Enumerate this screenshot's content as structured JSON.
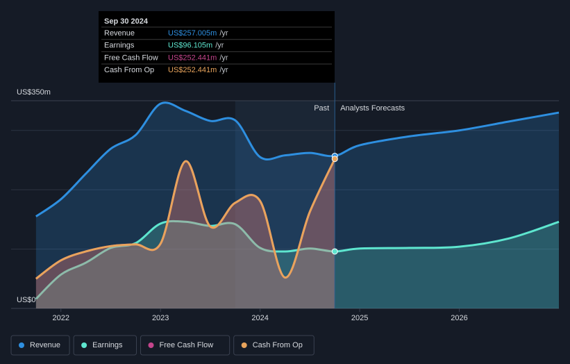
{
  "chart_data": {
    "type": "line",
    "x": [
      2021.75,
      2022.0,
      2022.25,
      2022.5,
      2022.75,
      2023.0,
      2023.25,
      2023.5,
      2023.75,
      2024.0,
      2024.25,
      2024.5,
      2024.75,
      2025.0,
      2025.5,
      2026.0,
      2026.5,
      2027.0
    ],
    "series": [
      {
        "name": "Revenue",
        "color": "#2e8fe0",
        "values": [
          155,
          184,
          227,
          269,
          292,
          345,
          333,
          316,
          317,
          255,
          258,
          262,
          257,
          275,
          290,
          300,
          315,
          330
        ]
      },
      {
        "name": "Earnings",
        "color": "#5ee6cf",
        "values": [
          16,
          57,
          77,
          102,
          110,
          143,
          146,
          139,
          142,
          102,
          96,
          101,
          96,
          101,
          102,
          104,
          118,
          146
        ]
      },
      {
        "name": "Free Cash Flow",
        "color": "#c4458c",
        "values": [
          50,
          81,
          96,
          105,
          108,
          109,
          248,
          138,
          178,
          181,
          52,
          163,
          252,
          null,
          null,
          null,
          null,
          null
        ]
      },
      {
        "name": "Cash From Op",
        "color": "#e8a45c",
        "values": [
          50,
          81,
          96,
          105,
          108,
          109,
          248,
          138,
          178,
          181,
          52,
          163,
          252,
          null,
          null,
          null,
          null,
          null
        ]
      }
    ],
    "xlim": [
      2021.5,
      2027.0
    ],
    "xticks": [
      2022,
      2023,
      2024,
      2025,
      2026
    ],
    "ylim": [
      0,
      350
    ],
    "yticks": [
      {
        "value": 0,
        "label": "US$0"
      },
      {
        "value": 350,
        "label": "US$350m"
      }
    ],
    "ygrid": [
      100,
      200,
      300,
      350
    ],
    "annotations": {
      "past": "Past",
      "forecast": "Analysts Forecasts"
    },
    "tooltip": {
      "date": "Sep 30 2024",
      "rows": [
        {
          "label": "Revenue",
          "value": "US$257.005m",
          "unit": "/yr"
        },
        {
          "label": "Earnings",
          "value": "US$96.105m",
          "unit": "/yr"
        },
        {
          "label": "Free Cash Flow",
          "value": "US$252.441m",
          "unit": "/yr"
        },
        {
          "label": "Cash From Op",
          "value": "US$252.441m",
          "unit": "/yr"
        }
      ]
    }
  }
}
